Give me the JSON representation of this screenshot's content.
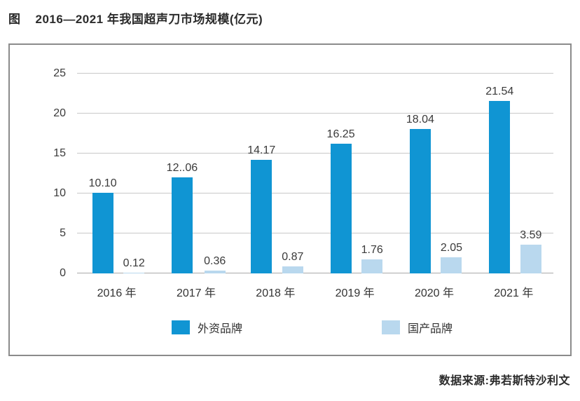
{
  "title": {
    "prefix": "图",
    "text": "2016—2021 年我国超声刀市场规模(亿元)"
  },
  "source": "数据来源:弗若斯特沙利文",
  "colors": {
    "foreign_brand": "#1095d3",
    "domestic_brand": "#b9d8ee",
    "gridline": "#c8c8c8",
    "axis_line": "#a8a8a8",
    "frame_border": "#8b8b8b"
  },
  "legend": {
    "items": [
      {
        "label": "外资品牌",
        "color": "#1095d3"
      },
      {
        "label": "国产品牌",
        "color": "#b9d8ee"
      }
    ]
  },
  "chart_data": {
    "type": "bar",
    "title": "2016—2021 年我国超声刀市场规模(亿元)",
    "xlabel": "",
    "ylabel": "",
    "categories": [
      "2016 年",
      "2017 年",
      "2018 年",
      "2019 年",
      "2020 年",
      "2021 年"
    ],
    "series": [
      {
        "name": "外资品牌",
        "key": "foreign",
        "color": "#1095d3",
        "values": [
          10.1,
          12.06,
          14.17,
          16.25,
          18.04,
          21.54
        ],
        "labels": [
          "10.10",
          "12..06",
          "14.17",
          "16.25",
          "18.04",
          "21.54"
        ]
      },
      {
        "name": "国产品牌",
        "key": "domestic",
        "color": "#b9d8ee",
        "values": [
          0.12,
          0.36,
          0.87,
          1.76,
          2.05,
          3.59
        ],
        "labels": [
          "0.12",
          "0.36",
          "0.87",
          "1.76",
          "2.05",
          "3.59"
        ]
      }
    ],
    "ylim": [
      0,
      25
    ],
    "ytick_step": 5,
    "grid": true,
    "legend_position": "bottom-inside"
  }
}
